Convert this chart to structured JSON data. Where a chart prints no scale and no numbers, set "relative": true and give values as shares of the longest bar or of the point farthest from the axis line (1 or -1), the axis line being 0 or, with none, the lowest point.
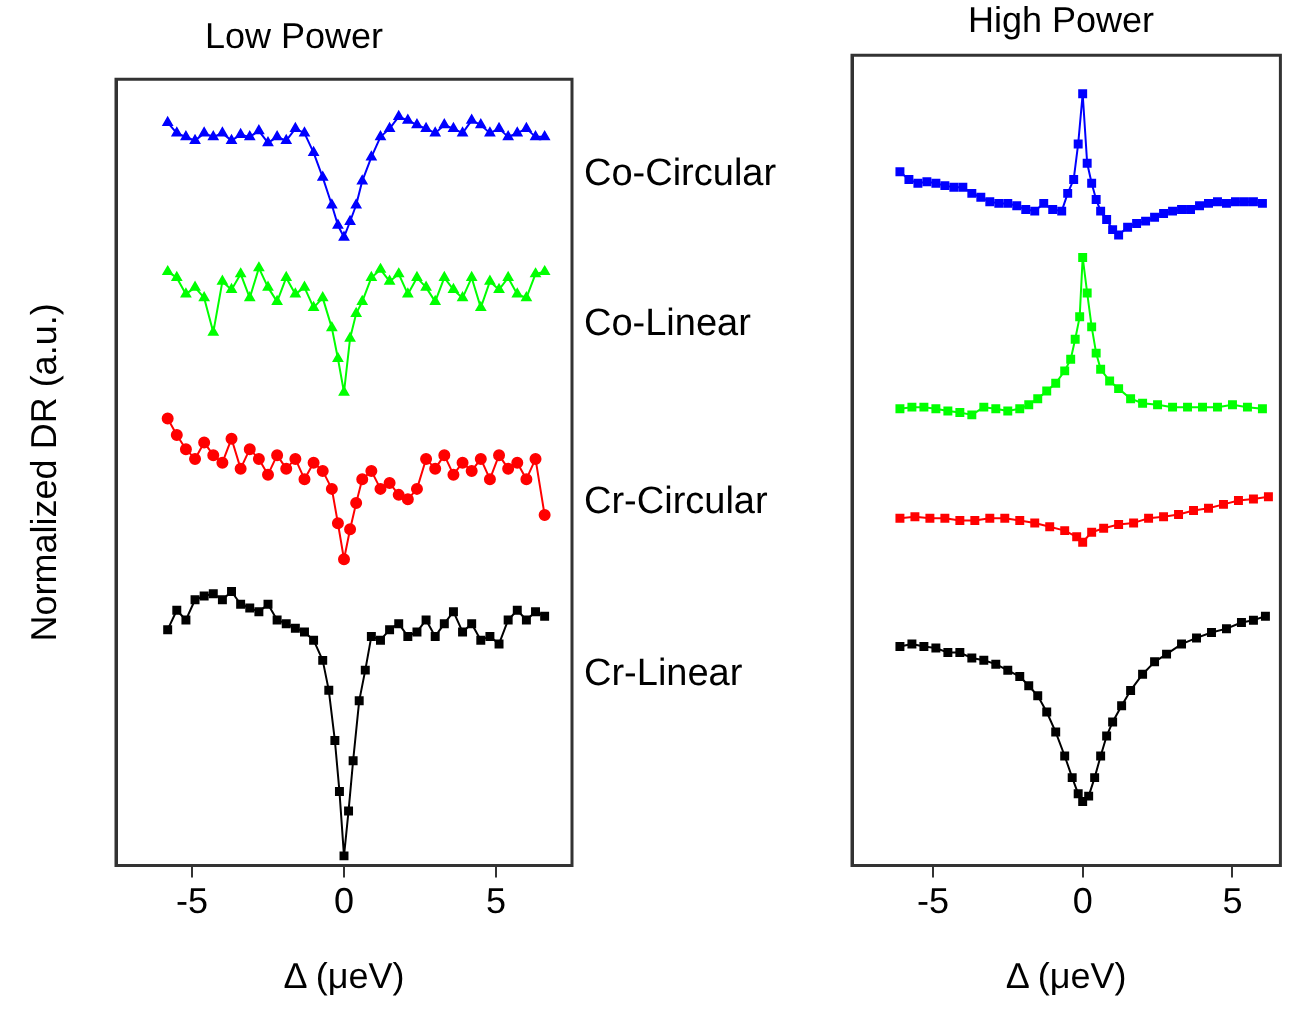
{
  "chart_data": [
    {
      "type": "line",
      "title": "Low Power",
      "xlabel": "Δ (μeV)",
      "ylabel": "Normalized DR (a.u.)",
      "relative": true,
      "xlim": [
        -7.5,
        7.5
      ],
      "xticks": [
        -5,
        0,
        5
      ],
      "x": [
        -5.8,
        -5.5,
        -5.2,
        -4.9,
        -4.6,
        -4.3,
        -4.0,
        -3.7,
        -3.4,
        -3.1,
        -2.8,
        -2.5,
        -2.2,
        -1.9,
        -1.6,
        -1.3,
        -1.0,
        -0.7,
        -0.4,
        -0.2,
        0,
        0.2,
        0.4,
        0.6,
        0.9,
        1.2,
        1.5,
        1.8,
        2.1,
        2.4,
        2.7,
        3.0,
        3.3,
        3.6,
        3.9,
        4.2,
        4.5,
        4.8,
        5.1,
        5.4,
        5.7,
        6.0,
        6.3,
        6.6
      ],
      "series": [
        {
          "name": "Co-Circular",
          "color": "#0000ff",
          "marker": "triangle",
          "values": [
            0.992,
            0.978,
            0.973,
            0.968,
            0.978,
            0.973,
            0.978,
            0.968,
            0.976,
            0.973,
            0.981,
            0.965,
            0.973,
            0.968,
            0.984,
            0.978,
            0.952,
            0.919,
            0.882,
            0.855,
            0.839,
            0.86,
            0.882,
            0.914,
            0.946,
            0.973,
            0.984,
            1.0,
            0.995,
            0.989,
            0.984,
            0.978,
            0.989,
            0.984,
            0.978,
            0.995,
            0.989,
            0.978,
            0.984,
            0.973,
            0.978,
            0.984,
            0.973,
            0.973
          ]
        },
        {
          "name": "Co-Linear",
          "color": "#00ff00",
          "marker": "triangle",
          "values": [
            0.793,
            0.785,
            0.763,
            0.772,
            0.758,
            0.712,
            0.78,
            0.769,
            0.79,
            0.758,
            0.798,
            0.772,
            0.753,
            0.785,
            0.763,
            0.772,
            0.745,
            0.758,
            0.718,
            0.677,
            0.632,
            0.704,
            0.737,
            0.753,
            0.785,
            0.796,
            0.78,
            0.79,
            0.763,
            0.785,
            0.772,
            0.753,
            0.785,
            0.769,
            0.758,
            0.785,
            0.745,
            0.78,
            0.769,
            0.785,
            0.763,
            0.758,
            0.79,
            0.793
          ]
        },
        {
          "name": "Cr-Circular",
          "color": "#ff0000",
          "marker": "circle",
          "values": [
            0.597,
            0.575,
            0.556,
            0.543,
            0.565,
            0.548,
            0.538,
            0.57,
            0.53,
            0.556,
            0.543,
            0.522,
            0.548,
            0.53,
            0.543,
            0.516,
            0.538,
            0.527,
            0.503,
            0.457,
            0.409,
            0.449,
            0.484,
            0.516,
            0.527,
            0.503,
            0.511,
            0.495,
            0.489,
            0.503,
            0.543,
            0.53,
            0.548,
            0.522,
            0.538,
            0.527,
            0.543,
            0.516,
            0.548,
            0.53,
            0.538,
            0.516,
            0.543,
            0.468
          ]
        },
        {
          "name": "Cr-Linear",
          "color": "#000000",
          "marker": "square",
          "x": [
            -5.8,
            -5.5,
            -5.2,
            -4.9,
            -4.6,
            -4.3,
            -4.0,
            -3.7,
            -3.4,
            -3.1,
            -2.8,
            -2.5,
            -2.2,
            -1.9,
            -1.6,
            -1.3,
            -1.0,
            -0.7,
            -0.5,
            -0.3,
            -0.15,
            0,
            0.15,
            0.3,
            0.5,
            0.7,
            0.9,
            1.2,
            1.5,
            1.8,
            2.1,
            2.4,
            2.7,
            3.0,
            3.3,
            3.6,
            3.9,
            4.2,
            4.5,
            4.8,
            5.1,
            5.4,
            5.7,
            6.0,
            6.3,
            6.6
          ],
          "values": [
            0.315,
            0.341,
            0.328,
            0.355,
            0.36,
            0.363,
            0.355,
            0.366,
            0.349,
            0.344,
            0.339,
            0.349,
            0.328,
            0.323,
            0.317,
            0.312,
            0.301,
            0.274,
            0.234,
            0.167,
            0.099,
            0.013,
            0.073,
            0.14,
            0.22,
            0.261,
            0.306,
            0.301,
            0.315,
            0.323,
            0.306,
            0.312,
            0.328,
            0.306,
            0.323,
            0.339,
            0.312,
            0.323,
            0.301,
            0.306,
            0.296,
            0.328,
            0.341,
            0.328,
            0.339,
            0.333
          ]
        }
      ]
    },
    {
      "type": "line",
      "title": "High Power",
      "xlabel": "Δ (μeV)",
      "relative": true,
      "marker": "square",
      "xlim": [
        -7.7,
        6.6
      ],
      "xticks": [
        -5,
        0,
        5
      ],
      "series": [
        {
          "color": "#0000ff",
          "x": [
            -6.1,
            -5.8,
            -5.5,
            -5.2,
            -4.9,
            -4.6,
            -4.3,
            -4.0,
            -3.7,
            -3.4,
            -3.1,
            -2.8,
            -2.5,
            -2.2,
            -1.9,
            -1.6,
            -1.3,
            -1.0,
            -0.7,
            -0.5,
            -0.3,
            -0.15,
            0,
            0.15,
            0.3,
            0.45,
            0.6,
            0.8,
            1.0,
            1.2,
            1.5,
            1.8,
            2.1,
            2.4,
            2.7,
            3.0,
            3.3,
            3.6,
            3.9,
            4.2,
            4.5,
            4.8,
            5.1,
            5.4,
            5.7,
            6.0
          ],
          "values": [
            0.899,
            0.889,
            0.884,
            0.886,
            0.884,
            0.881,
            0.879,
            0.879,
            0.871,
            0.866,
            0.86,
            0.858,
            0.858,
            0.855,
            0.85,
            0.848,
            0.858,
            0.85,
            0.848,
            0.871,
            0.889,
            0.935,
            1.0,
            0.91,
            0.884,
            0.863,
            0.848,
            0.837,
            0.824,
            0.817,
            0.827,
            0.832,
            0.835,
            0.84,
            0.845,
            0.848,
            0.85,
            0.85,
            0.855,
            0.858,
            0.86,
            0.858,
            0.86,
            0.86,
            0.86,
            0.858
          ]
        },
        {
          "color": "#00ff00",
          "x": [
            -6.1,
            -5.7,
            -5.3,
            -4.9,
            -4.5,
            -4.1,
            -3.7,
            -3.3,
            -2.9,
            -2.5,
            -2.1,
            -1.8,
            -1.5,
            -1.2,
            -0.9,
            -0.6,
            -0.4,
            -0.25,
            -0.1,
            0,
            0.15,
            0.3,
            0.45,
            0.6,
            0.9,
            1.2,
            1.6,
            2.0,
            2.5,
            3.0,
            3.5,
            4.0,
            4.5,
            5.0,
            5.5,
            6.0
          ],
          "values": [
            0.592,
            0.594,
            0.594,
            0.592,
            0.589,
            0.587,
            0.584,
            0.594,
            0.592,
            0.589,
            0.592,
            0.597,
            0.605,
            0.615,
            0.625,
            0.641,
            0.656,
            0.682,
            0.711,
            0.788,
            0.742,
            0.698,
            0.664,
            0.643,
            0.628,
            0.618,
            0.605,
            0.599,
            0.597,
            0.594,
            0.594,
            0.594,
            0.594,
            0.597,
            0.594,
            0.592
          ]
        },
        {
          "color": "#ff0000",
          "x": [
            -6.1,
            -5.6,
            -5.1,
            -4.6,
            -4.1,
            -3.6,
            -3.1,
            -2.6,
            -2.1,
            -1.6,
            -1.1,
            -0.6,
            -0.2,
            0,
            0.3,
            0.7,
            1.2,
            1.7,
            2.2,
            2.7,
            3.2,
            3.7,
            4.2,
            4.7,
            5.2,
            5.7,
            6.2
          ],
          "values": [
            0.45,
            0.452,
            0.45,
            0.45,
            0.447,
            0.447,
            0.45,
            0.45,
            0.447,
            0.444,
            0.439,
            0.434,
            0.426,
            0.419,
            0.432,
            0.437,
            0.442,
            0.444,
            0.45,
            0.452,
            0.455,
            0.46,
            0.463,
            0.468,
            0.473,
            0.475,
            0.478
          ]
        },
        {
          "color": "#000000",
          "x": [
            -6.1,
            -5.7,
            -5.3,
            -4.9,
            -4.5,
            -4.1,
            -3.7,
            -3.3,
            -2.9,
            -2.5,
            -2.1,
            -1.8,
            -1.5,
            -1.2,
            -0.9,
            -0.6,
            -0.35,
            -0.15,
            0,
            0.2,
            0.4,
            0.6,
            0.8,
            1.0,
            1.3,
            1.6,
            2.0,
            2.4,
            2.8,
            3.3,
            3.8,
            4.3,
            4.8,
            5.3,
            5.7,
            6.1
          ],
          "values": [
            0.284,
            0.287,
            0.284,
            0.282,
            0.276,
            0.276,
            0.269,
            0.266,
            0.261,
            0.253,
            0.245,
            0.233,
            0.22,
            0.199,
            0.173,
            0.142,
            0.114,
            0.093,
            0.083,
            0.09,
            0.114,
            0.142,
            0.168,
            0.186,
            0.207,
            0.227,
            0.248,
            0.264,
            0.274,
            0.287,
            0.295,
            0.302,
            0.307,
            0.315,
            0.318,
            0.323
          ]
        }
      ]
    }
  ]
}
